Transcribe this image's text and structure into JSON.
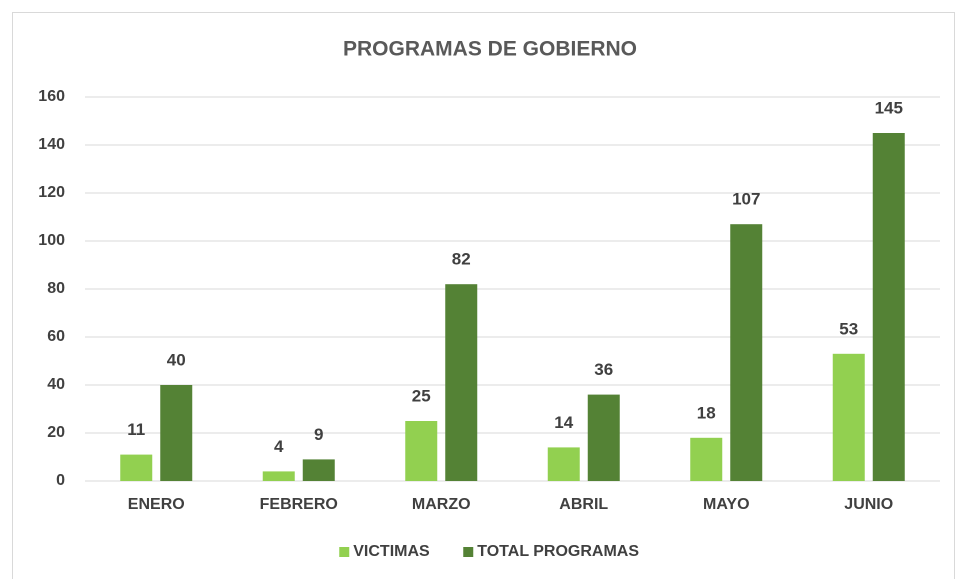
{
  "chart_data": {
    "type": "bar",
    "title": "PROGRAMAS DE GOBIERNO",
    "categories": [
      "ENERO",
      "FEBRERO",
      "MARZO",
      "ABRIL",
      "MAYO",
      "JUNIO"
    ],
    "series": [
      {
        "name": "VICTIMAS",
        "color": "#92d050",
        "values": [
          11,
          4,
          25,
          14,
          18,
          53
        ]
      },
      {
        "name": "TOTAL PROGRAMAS",
        "color": "#548235",
        "values": [
          40,
          9,
          82,
          36,
          107,
          145
        ]
      }
    ],
    "ylim": [
      0,
      160
    ],
    "yticks": [
      0,
      20,
      40,
      60,
      80,
      100,
      120,
      140,
      160
    ],
    "grid": true,
    "legend": "bottom"
  }
}
